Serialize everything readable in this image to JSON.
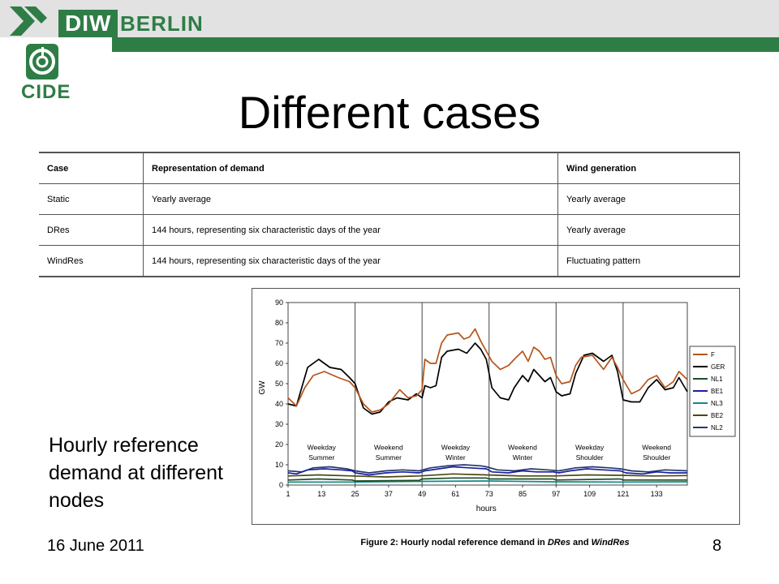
{
  "header": {
    "brand_diw": "DIW",
    "brand_berlin": "BERLIN",
    "cide": "CIDE",
    "colors": {
      "green": "#2e7d46",
      "gray": "#e2e2e2"
    }
  },
  "slide": {
    "title": "Different cases",
    "side_text": "Hourly reference demand at different nodes",
    "date": "16 June 2011",
    "page": "8",
    "caption_prefix": "Figure 2: Hourly nodal reference demand in ",
    "caption_dres": "DRes",
    "caption_and": " and ",
    "caption_windres": "WindRes"
  },
  "table": {
    "headers": [
      "Case",
      "Representation  of demand",
      "Wind generation"
    ],
    "rows": [
      [
        "Static",
        "Yearly average",
        "Yearly average"
      ],
      [
        "DRes",
        "144 hours, representing six characteristic days of the year",
        "Yearly average"
      ],
      [
        "WindRes",
        "144 hours, representing six characteristic days of the year",
        "Fluctuating pattern"
      ]
    ]
  },
  "chart_data": {
    "type": "line",
    "title": "",
    "xlabel": "hours",
    "ylabel": "GW",
    "xlim": [
      1,
      144
    ],
    "ylim": [
      0,
      90
    ],
    "yticks": [
      0,
      10,
      20,
      30,
      40,
      50,
      60,
      70,
      80,
      90
    ],
    "xticks": [
      1,
      13,
      25,
      37,
      49,
      61,
      73,
      85,
      97,
      109,
      121,
      133
    ],
    "grid": "vertical separators every 24 hours",
    "legend_position": "right",
    "segments": [
      [
        "Weekday",
        "Summer"
      ],
      [
        "Weekend",
        "Summer"
      ],
      [
        "Weekday",
        "Winter"
      ],
      [
        "Weekend",
        "Winter"
      ],
      [
        "Weekday",
        "Shoulder"
      ],
      [
        "Weekend",
        "Shoulder"
      ]
    ],
    "series": [
      {
        "name": "F",
        "color": "#b5541b",
        "points": [
          [
            1,
            43
          ],
          [
            4,
            39
          ],
          [
            7,
            48
          ],
          [
            10,
            54
          ],
          [
            14,
            56
          ],
          [
            19,
            53
          ],
          [
            23,
            51
          ],
          [
            25,
            48
          ],
          [
            28,
            40
          ],
          [
            31,
            36
          ],
          [
            34,
            37
          ],
          [
            37,
            40
          ],
          [
            41,
            47
          ],
          [
            44,
            43
          ],
          [
            47,
            44
          ],
          [
            49,
            47
          ],
          [
            50,
            62
          ],
          [
            52,
            60
          ],
          [
            54,
            60
          ],
          [
            56,
            70
          ],
          [
            58,
            74
          ],
          [
            62,
            75
          ],
          [
            64,
            72
          ],
          [
            66,
            73
          ],
          [
            68,
            77
          ],
          [
            70,
            71
          ],
          [
            72,
            66
          ],
          [
            74,
            61
          ],
          [
            77,
            57
          ],
          [
            80,
            59
          ],
          [
            82,
            62
          ],
          [
            85,
            66
          ],
          [
            87,
            61
          ],
          [
            89,
            68
          ],
          [
            91,
            66
          ],
          [
            93,
            62
          ],
          [
            95,
            63
          ],
          [
            97,
            54
          ],
          [
            99,
            50
          ],
          [
            102,
            51
          ],
          [
            104,
            59
          ],
          [
            106,
            63
          ],
          [
            110,
            64
          ],
          [
            114,
            57
          ],
          [
            117,
            63
          ],
          [
            119,
            58
          ],
          [
            121,
            52
          ],
          [
            124,
            45
          ],
          [
            127,
            47
          ],
          [
            130,
            52
          ],
          [
            133,
            54
          ],
          [
            136,
            48
          ],
          [
            139,
            51
          ],
          [
            141,
            56
          ],
          [
            144,
            52
          ]
        ]
      },
      {
        "name": "GER",
        "color": "#000000",
        "points": [
          [
            1,
            40
          ],
          [
            4,
            39
          ],
          [
            8,
            58
          ],
          [
            12,
            62
          ],
          [
            16,
            58
          ],
          [
            20,
            57
          ],
          [
            23,
            53
          ],
          [
            25,
            50
          ],
          [
            28,
            38
          ],
          [
            31,
            35
          ],
          [
            34,
            36
          ],
          [
            37,
            41
          ],
          [
            40,
            43
          ],
          [
            44,
            42
          ],
          [
            47,
            45
          ],
          [
            49,
            43
          ],
          [
            50,
            49
          ],
          [
            52,
            48
          ],
          [
            54,
            49
          ],
          [
            56,
            63
          ],
          [
            58,
            66
          ],
          [
            62,
            67
          ],
          [
            65,
            65
          ],
          [
            68,
            70
          ],
          [
            70,
            67
          ],
          [
            72,
            62
          ],
          [
            74,
            48
          ],
          [
            77,
            43
          ],
          [
            80,
            42
          ],
          [
            82,
            48
          ],
          [
            85,
            54
          ],
          [
            87,
            51
          ],
          [
            89,
            57
          ],
          [
            91,
            54
          ],
          [
            93,
            51
          ],
          [
            95,
            53
          ],
          [
            97,
            46
          ],
          [
            99,
            44
          ],
          [
            102,
            45
          ],
          [
            104,
            55
          ],
          [
            107,
            64
          ],
          [
            110,
            65
          ],
          [
            114,
            61
          ],
          [
            117,
            64
          ],
          [
            119,
            56
          ],
          [
            121,
            42
          ],
          [
            124,
            41
          ],
          [
            127,
            41
          ],
          [
            130,
            48
          ],
          [
            133,
            52
          ],
          [
            136,
            47
          ],
          [
            139,
            48
          ],
          [
            141,
            53
          ],
          [
            144,
            46
          ]
        ]
      },
      {
        "name": "NL1",
        "color": "#1e4d25",
        "points": [
          [
            1,
            2.5
          ],
          [
            12,
            3
          ],
          [
            24,
            2.5
          ],
          [
            25,
            2
          ],
          [
            48,
            2.3
          ],
          [
            49,
            3
          ],
          [
            60,
            3.5
          ],
          [
            72,
            3.5
          ],
          [
            73,
            3
          ],
          [
            96,
            3
          ],
          [
            97,
            2.5
          ],
          [
            120,
            3
          ],
          [
            121,
            2.5
          ],
          [
            144,
            2.5
          ]
        ]
      },
      {
        "name": "BE1",
        "color": "#1f1fa0",
        "points": [
          [
            1,
            6
          ],
          [
            4,
            5.5
          ],
          [
            8,
            7.5
          ],
          [
            14,
            8
          ],
          [
            20,
            7.5
          ],
          [
            24,
            7
          ],
          [
            25,
            6
          ],
          [
            30,
            5
          ],
          [
            36,
            6
          ],
          [
            42,
            6.5
          ],
          [
            48,
            6
          ],
          [
            50,
            7
          ],
          [
            55,
            8
          ],
          [
            60,
            9
          ],
          [
            66,
            8.5
          ],
          [
            72,
            8
          ],
          [
            74,
            6.5
          ],
          [
            80,
            6
          ],
          [
            85,
            7
          ],
          [
            90,
            6.5
          ],
          [
            96,
            6.5
          ],
          [
            98,
            6
          ],
          [
            102,
            7
          ],
          [
            108,
            8
          ],
          [
            114,
            7.5
          ],
          [
            120,
            7
          ],
          [
            122,
            6
          ],
          [
            128,
            5.5
          ],
          [
            133,
            6.5
          ],
          [
            138,
            6
          ],
          [
            144,
            6
          ]
        ]
      },
      {
        "name": "NL3",
        "color": "#0e8a8a",
        "points": [
          [
            1,
            1.5
          ],
          [
            24,
            1.5
          ],
          [
            48,
            1.8
          ],
          [
            72,
            2
          ],
          [
            96,
            1.6
          ],
          [
            120,
            1.5
          ],
          [
            144,
            1.6
          ]
        ]
      },
      {
        "name": "BE2",
        "color": "#4a4a12",
        "points": [
          [
            1,
            4.5
          ],
          [
            12,
            5
          ],
          [
            24,
            4.5
          ],
          [
            36,
            4
          ],
          [
            48,
            4.5
          ],
          [
            60,
            5.5
          ],
          [
            72,
            5
          ],
          [
            84,
            4.5
          ],
          [
            96,
            4.5
          ],
          [
            108,
            5
          ],
          [
            120,
            4.8
          ],
          [
            132,
            4.5
          ],
          [
            144,
            4.7
          ]
        ]
      },
      {
        "name": "NL2",
        "color": "#223a6e",
        "points": [
          [
            1,
            7
          ],
          [
            6,
            6.5
          ],
          [
            10,
            8.5
          ],
          [
            16,
            9
          ],
          [
            22,
            8
          ],
          [
            25,
            7
          ],
          [
            30,
            6
          ],
          [
            36,
            7
          ],
          [
            42,
            7.5
          ],
          [
            48,
            7
          ],
          [
            52,
            8.5
          ],
          [
            58,
            9.5
          ],
          [
            64,
            10
          ],
          [
            70,
            9.5
          ],
          [
            72,
            9
          ],
          [
            76,
            7.5
          ],
          [
            82,
            7
          ],
          [
            88,
            8
          ],
          [
            94,
            7.5
          ],
          [
            98,
            7
          ],
          [
            104,
            8.5
          ],
          [
            110,
            9
          ],
          [
            116,
            8.5
          ],
          [
            120,
            8
          ],
          [
            124,
            7
          ],
          [
            130,
            6.5
          ],
          [
            136,
            7.5
          ],
          [
            144,
            7
          ]
        ]
      }
    ]
  }
}
